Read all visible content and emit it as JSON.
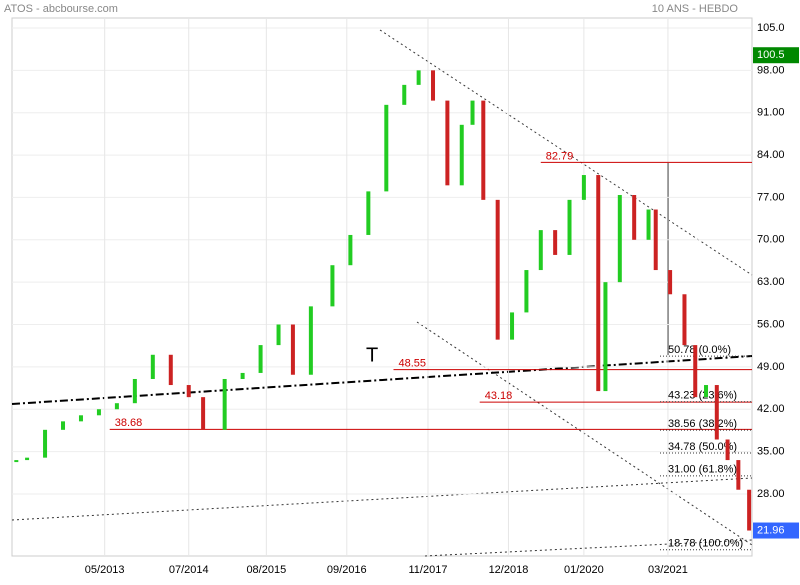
{
  "chart_data": {
    "type": "price",
    "title": "ATOS - abcbourse.com",
    "subtitle": "10 ANS - HEBDO",
    "annotation": "T",
    "series": [
      {
        "name": "ATOS",
        "up_color": "#22cc22",
        "down_color": "#cc2222",
        "x": [
          2012.1,
          2012.25,
          2012.5,
          2012.75,
          2013.0,
          2013.25,
          2013.5,
          2013.75,
          2014.0,
          2014.25,
          2014.5,
          2014.7,
          2015.0,
          2015.25,
          2015.5,
          2015.75,
          2015.95,
          2016.2,
          2016.5,
          2016.75,
          2017.0,
          2017.25,
          2017.5,
          2017.7,
          2017.9,
          2018.1,
          2018.3,
          2018.45,
          2018.6,
          2018.8,
          2019.0,
          2019.2,
          2019.4,
          2019.6,
          2019.8,
          2020.0,
          2020.2,
          2020.3,
          2020.5,
          2020.7,
          2020.9,
          2021.0,
          2021.2,
          2021.4,
          2021.55,
          2021.7,
          2021.85,
          2022.0,
          2022.15,
          2022.3
        ],
        "values": [
          33.6,
          34,
          38.6,
          40,
          41,
          42,
          43,
          47,
          51,
          46,
          44,
          38.6,
          47,
          48,
          52.6,
          56,
          47.7,
          59,
          65.8,
          70.8,
          78,
          92.3,
          95.6,
          98,
          93,
          79,
          89,
          93,
          76.6,
          53.5,
          58,
          65,
          71.6,
          67.5,
          76.6,
          80.7,
          45,
          63,
          77.4,
          70,
          75,
          65,
          61,
          52.6,
          44,
          46,
          37,
          33.6,
          28.7,
          21.96
        ]
      }
    ],
    "xlim": [
      2012.04,
      2022.34
    ],
    "ylim": [
      17.75,
      106.65
    ],
    "xticks": [
      {
        "value": 2013.33,
        "label": "05/2013"
      },
      {
        "value": 2014.5,
        "label": "07/2014"
      },
      {
        "value": 2015.58,
        "label": "08/2015"
      },
      {
        "value": 2016.7,
        "label": "09/2016"
      },
      {
        "value": 2017.83,
        "label": "11/2017"
      },
      {
        "value": 2018.95,
        "label": "12/2018"
      },
      {
        "value": 2020.0,
        "label": "01/2020"
      },
      {
        "value": 2021.17,
        "label": "03/2021"
      }
    ],
    "yticks": [
      {
        "value": 105,
        "label": "105.0"
      },
      {
        "value": 98,
        "label": "98.00"
      },
      {
        "value": 91,
        "label": "91.00"
      },
      {
        "value": 84,
        "label": "84.00"
      },
      {
        "value": 77,
        "label": "77.00"
      },
      {
        "value": 70,
        "label": "70.00"
      },
      {
        "value": 63,
        "label": "63.00"
      },
      {
        "value": 56,
        "label": "56.00"
      },
      {
        "value": 49,
        "label": "49.00"
      },
      {
        "value": 42,
        "label": "42.00"
      },
      {
        "value": 35,
        "label": "35.00"
      },
      {
        "value": 28,
        "label": "28.00"
      }
    ],
    "price_tags": [
      {
        "value": 100.5,
        "color": "#008800"
      },
      {
        "value": 21.96,
        "color": "#3366ff"
      }
    ],
    "levels": [
      {
        "value": 82.79,
        "x0": 2019.4
      },
      {
        "value": 48.55,
        "x0": 2017.35
      },
      {
        "value": 43.18,
        "x0": 2018.55
      },
      {
        "value": 38.68,
        "x0": 2013.4
      }
    ],
    "fib_levels": [
      {
        "value": 50.78,
        "label": "50.78  (0.0%)"
      },
      {
        "value": 43.23,
        "label": "43.23  (23.6%)"
      },
      {
        "value": 38.56,
        "label": "38.56  (38.2%)"
      },
      {
        "value": 34.78,
        "label": "34.78  (50.0%)"
      },
      {
        "value": 31.0,
        "label": "31.00  (61.8%)"
      },
      {
        "value": 18.78,
        "label": "18.78  (100.0%)"
      }
    ]
  }
}
